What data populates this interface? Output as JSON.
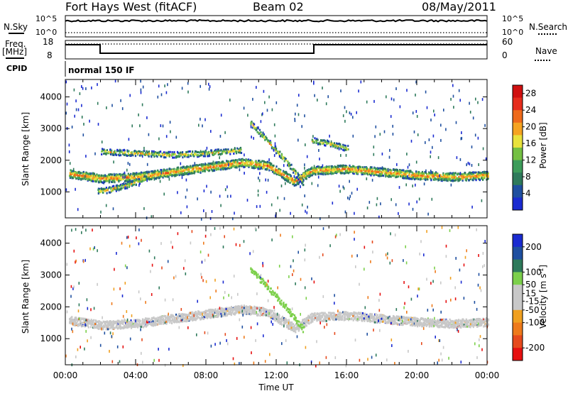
{
  "header": {
    "station": "Fort Hays West (fitACF)",
    "beam": "Beam 02",
    "date": "08/May/2011"
  },
  "top_panels": {
    "nsky_label": "N.Sky",
    "nsearch_label": "N.Search",
    "nsky_ticks": [
      "10^5",
      "10^0"
    ],
    "nsearch_ticks": [
      "10^5",
      "10^0"
    ],
    "freq_label": "Freq.",
    "freq_unit": "[MHz]",
    "freq_ticks": [
      "18",
      "8"
    ],
    "nave_label": "Nave",
    "nave_ticks": [
      "60",
      "0"
    ],
    "cpid_label": "CPID",
    "cpid_value": "normal 150 IF"
  },
  "colors": {
    "power": [
      "#1a2bd1",
      "#1f4fa0",
      "#2e7a5b",
      "#3d9c5a",
      "#74c043",
      "#e8e23c",
      "#f5a321",
      "#ee6a1b",
      "#e62d1d",
      "#d01010"
    ],
    "velocity": [
      "#1a2bd1",
      "#1f4fa0",
      "#2e7a5b",
      "#7cd04b",
      "#c8c8c8",
      "#c8c8c8",
      "#f0a020",
      "#ee7a1b",
      "#e64a1d",
      "#e61010"
    ]
  },
  "chart_data": [
    {
      "type": "heatmap",
      "name": "power",
      "xlabel": "Time UT",
      "ylabel": "Slant Range [km]",
      "x_ticks": [
        "00:00",
        "04:00",
        "08:00",
        "12:00",
        "16:00",
        "20:00",
        "00:00"
      ],
      "xlim": [
        0,
        24
      ],
      "y_ticks": [
        1000,
        2000,
        3000,
        4000
      ],
      "ylim": [
        180,
        4550
      ],
      "colorbar": {
        "label": "Power [dB]",
        "ticks": [
          4,
          8,
          12,
          16,
          20,
          24,
          28
        ],
        "range": [
          0,
          30
        ]
      },
      "bands": [
        {
          "time": [
            0.2,
            2,
            4,
            6,
            8,
            10,
            11.5,
            13,
            14,
            16,
            18,
            20,
            22,
            24
          ],
          "range": [
            1600,
            1450,
            1500,
            1650,
            1800,
            1950,
            1850,
            1350,
            1700,
            1750,
            1650,
            1550,
            1500,
            1550
          ]
        },
        {
          "time": [
            1.8,
            2.5,
            3.5,
            4.5
          ],
          "range": [
            1050,
            1100,
            1250,
            1450
          ]
        },
        {
          "time": [
            2,
            4,
            6,
            8,
            10
          ],
          "range": [
            2300,
            2250,
            2200,
            2250,
            2350
          ]
        },
        {
          "time": [
            10.5,
            11.5,
            12.5,
            13.5
          ],
          "range": [
            3200,
            2600,
            2000,
            1300
          ]
        },
        {
          "time": [
            14,
            15,
            16
          ],
          "range": [
            2650,
            2550,
            2400
          ]
        }
      ]
    },
    {
      "type": "heatmap",
      "name": "velocity",
      "xlabel": "Time UT",
      "ylabel": "Slant Range [km]",
      "x_ticks": [
        "00:00",
        "04:00",
        "08:00",
        "12:00",
        "16:00",
        "20:00",
        "00:00"
      ],
      "xlim": [
        0,
        24
      ],
      "y_ticks": [
        1000,
        2000,
        3000,
        4000
      ],
      "ylim": [
        180,
        4550
      ],
      "colorbar": {
        "label": "Velocity [m s^-1]",
        "ticks": [
          200,
          100,
          50,
          15,
          -15,
          -50,
          -100,
          -200
        ],
        "range": [
          -250,
          250
        ]
      },
      "bands": [
        {
          "time": [
            0.2,
            2,
            4,
            6,
            8,
            10,
            11.5,
            13,
            14,
            16,
            18,
            20,
            22,
            24
          ],
          "range": [
            1600,
            1450,
            1500,
            1650,
            1800,
            1950,
            1850,
            1350,
            1700,
            1750,
            1650,
            1550,
            1500,
            1550
          ]
        },
        {
          "time": [
            10.5,
            11.5,
            12.5,
            13.5
          ],
          "range": [
            3200,
            2600,
            2000,
            1300
          ]
        }
      ]
    }
  ]
}
